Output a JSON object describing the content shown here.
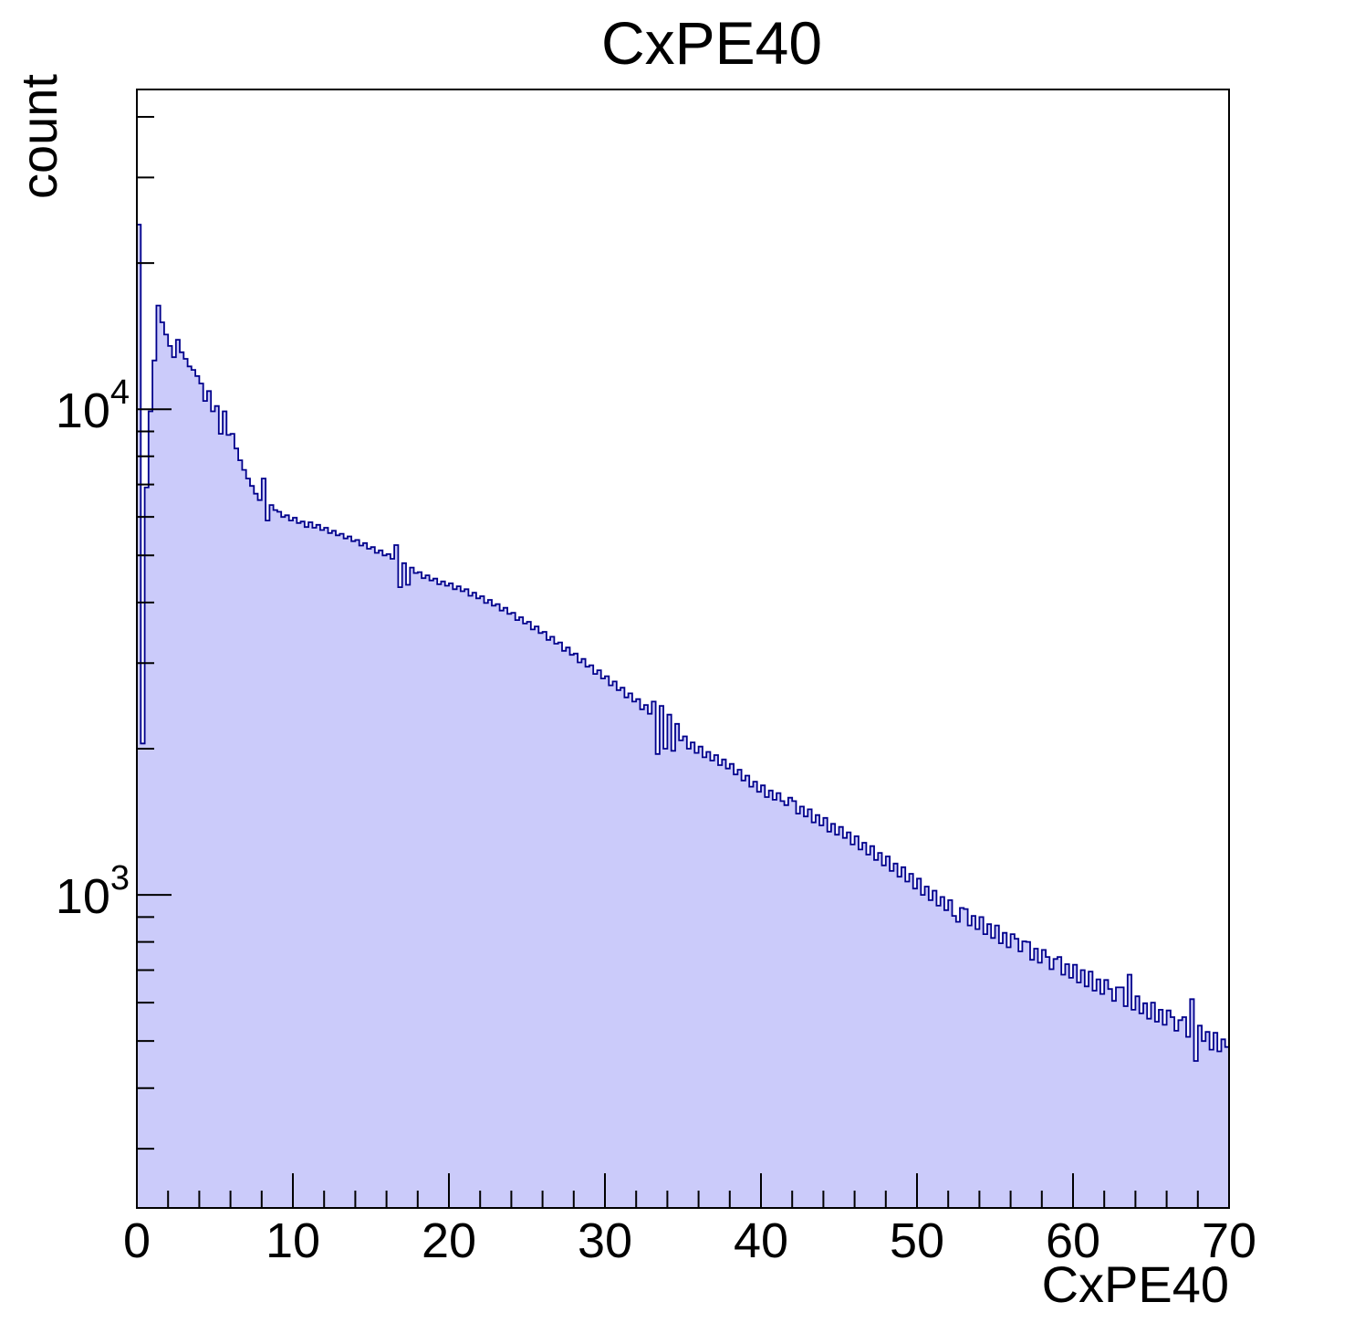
{
  "page": {
    "background": "#ffffff"
  },
  "chart_data": {
    "type": "bar",
    "subtype": "filled-step-histogram",
    "title": "CxPE40",
    "xlabel": "CxPE40",
    "ylabel": "count",
    "x_range": [
      0,
      70
    ],
    "y_scale": "log",
    "y_range": [
      226.6,
      45540
    ],
    "x_major_ticks": [
      0,
      10,
      20,
      30,
      40,
      50,
      60,
      70
    ],
    "x_minor_tick_step": 2,
    "y_major_ticks": [
      {
        "value": 1000,
        "base": "10",
        "exp": "3"
      },
      {
        "value": 10000,
        "base": "10",
        "exp": "4"
      }
    ],
    "grid": false,
    "legend": false,
    "fill_color": "#cbcbfa",
    "line_color": "#00008c",
    "axis_color": "#000000",
    "bin_start": 0,
    "bin_width": 0.25,
    "counts": [
      24000,
      2050,
      6900,
      9900,
      12600,
      16350,
      15100,
      14250,
      13500,
      12800,
      13900,
      13100,
      12700,
      12250,
      12050,
      11700,
      11300,
      10400,
      10900,
      9900,
      10150,
      8900,
      9900,
      8850,
      8900,
      8300,
      7850,
      7500,
      7200,
      6950,
      6700,
      6500,
      7200,
      5900,
      6350,
      6200,
      6150,
      6000,
      6050,
      5900,
      5980,
      5830,
      5870,
      5720,
      5850,
      5700,
      5780,
      5640,
      5700,
      5560,
      5620,
      5500,
      5540,
      5420,
      5470,
      5350,
      5380,
      5240,
      5300,
      5160,
      5200,
      5060,
      5120,
      5000,
      5030,
      4920,
      5250,
      4300,
      4820,
      4350,
      4720,
      4600,
      4620,
      4490,
      4550,
      4440,
      4480,
      4360,
      4420,
      4330,
      4380,
      4260,
      4320,
      4220,
      4260,
      4130,
      4190,
      4080,
      4120,
      3990,
      4050,
      3940,
      3970,
      3850,
      3900,
      3790,
      3810,
      3680,
      3730,
      3620,
      3650,
      3520,
      3570,
      3460,
      3480,
      3350,
      3400,
      3290,
      3310,
      3180,
      3230,
      3120,
      3140,
      3010,
      3060,
      2950,
      2970,
      2850,
      2900,
      2790,
      2820,
      2700,
      2750,
      2640,
      2670,
      2550,
      2600,
      2500,
      2530,
      2410,
      2460,
      2360,
      2500,
      1950,
      2450,
      2000,
      2350,
      1980,
      2250,
      2080,
      2120,
      2000,
      2060,
      1960,
      2020,
      1920,
      1970,
      1890,
      1940,
      1850,
      1900,
      1820,
      1860,
      1770,
      1810,
      1720,
      1760,
      1670,
      1710,
      1630,
      1680,
      1590,
      1640,
      1570,
      1620,
      1560,
      1530,
      1585,
      1560,
      1470,
      1520,
      1450,
      1500,
      1410,
      1460,
      1390,
      1440,
      1350,
      1400,
      1330,
      1380,
      1310,
      1345,
      1270,
      1320,
      1240,
      1280,
      1210,
      1260,
      1180,
      1220,
      1150,
      1200,
      1120,
      1160,
      1090,
      1140,
      1065,
      1105,
      1030,
      1080,
      1000,
      1040,
      975,
      1020,
      950,
      990,
      930,
      975,
      905,
      880,
      940,
      935,
      865,
      905,
      850,
      900,
      830,
      870,
      815,
      865,
      795,
      835,
      780,
      830,
      812,
      765,
      802,
      800,
      735,
      775,
      725,
      770,
      745,
      703,
      738,
      745,
      685,
      720,
      675,
      718,
      660,
      700,
      648,
      695,
      635,
      670,
      625,
      668,
      640,
      605,
      645,
      645,
      590,
      685,
      580,
      618,
      570,
      598,
      556,
      600,
      548,
      580,
      540,
      578,
      560,
      525,
      552,
      560,
      510,
      610,
      455,
      538,
      500,
      522,
      480,
      520,
      476,
      504,
      486
    ]
  }
}
